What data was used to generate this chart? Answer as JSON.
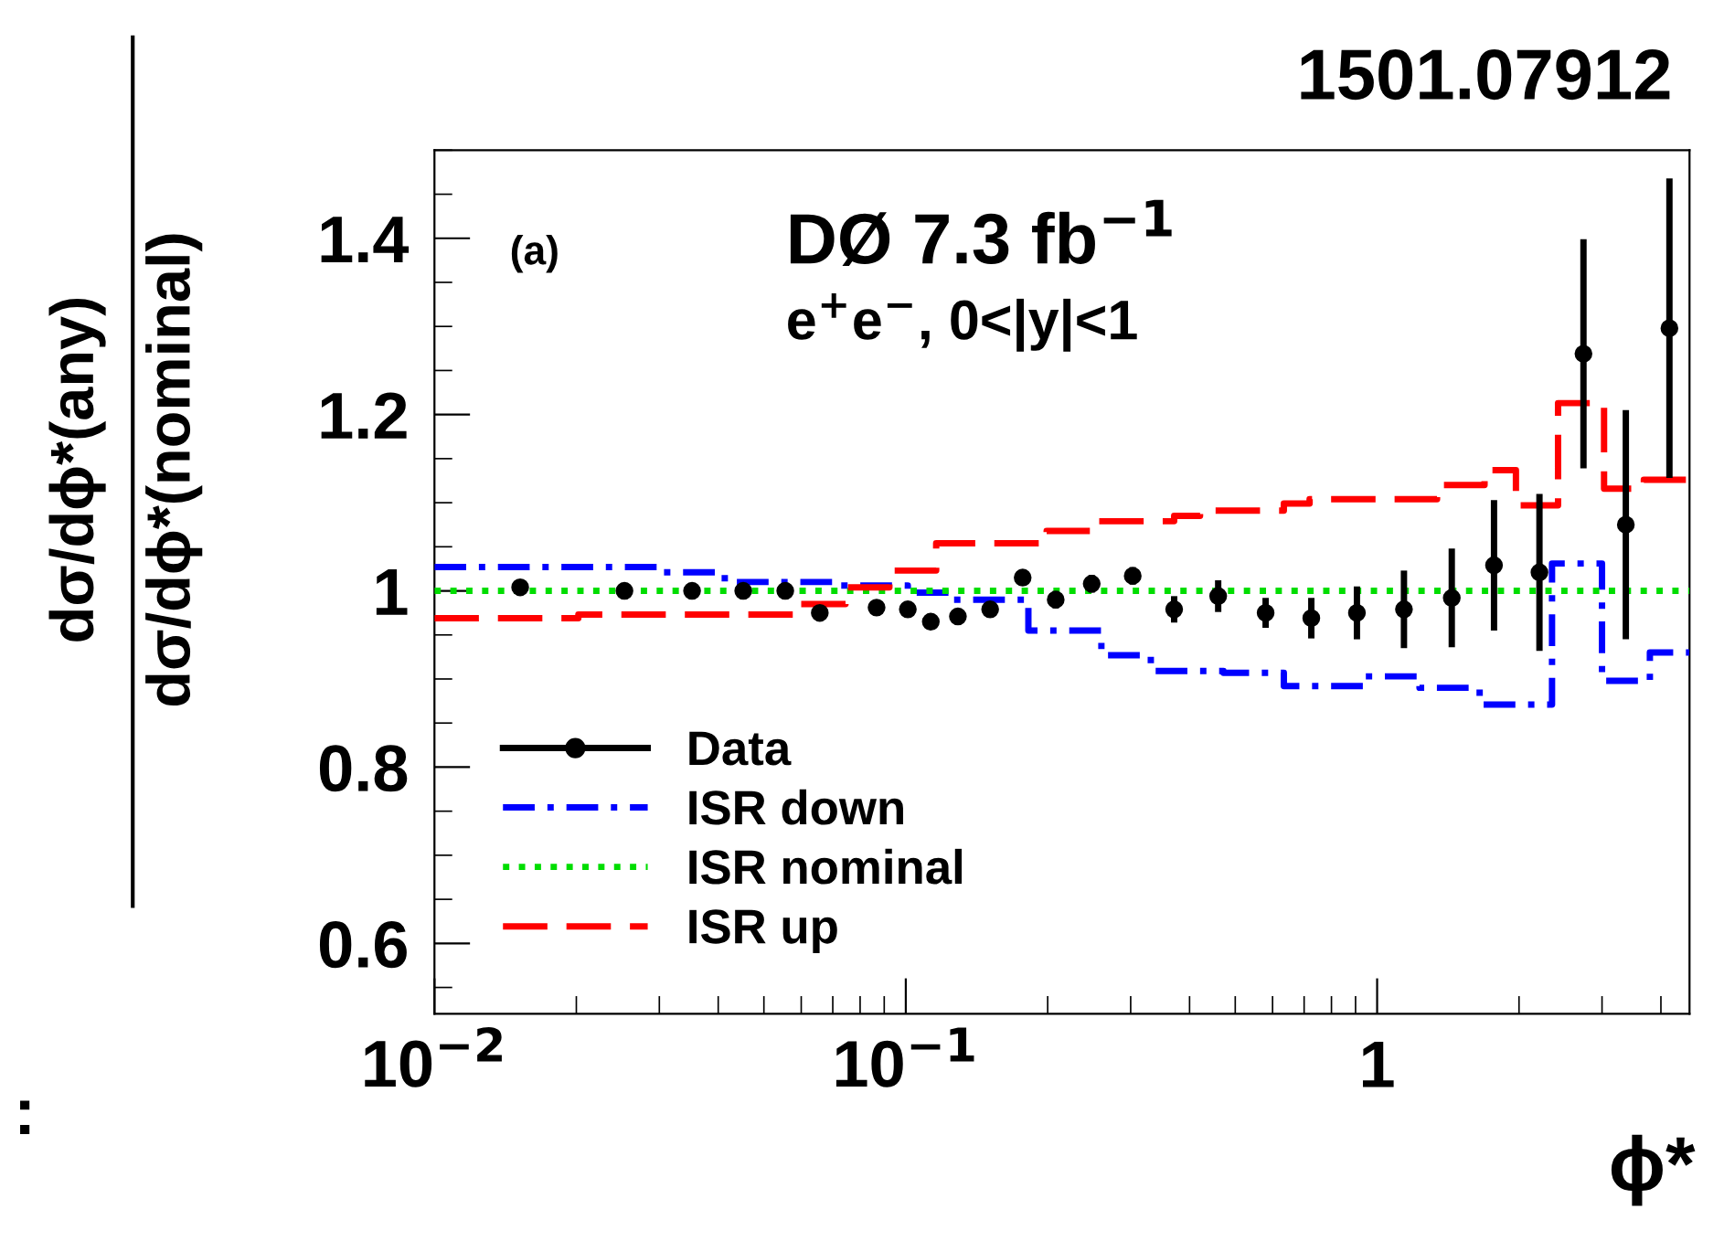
{
  "chart_data": {
    "type": "step",
    "xlabel": "ϕ*",
    "ylabel": "dσ/dϕ*(any)\ndσ/dϕ*(nominal)",
    "annotations": [
      "(a)",
      "DØ 7.3 fb$^{−1}$",
      "e$^{+}$e$^{−}$, 0<|y|<1",
      "1501.07912",
      ":"
    ],
    "log": "x",
    "xlim": [
      0.01,
      4.6
    ],
    "xticks": [
      {
        "value": 0.01,
        "label": "10$^{−2}$"
      },
      {
        "value": 0.1,
        "label": "10$^{−1}$"
      },
      1
    ],
    "ylim": [
      0.52,
      1.5
    ],
    "yticks": [
      0.6,
      0.8,
      1,
      1.2,
      1.4
    ],
    "grid": false,
    "legend": "bottom left",
    "series": [
      {
        "name": "Data",
        "type": "scatter",
        "color": "#000000",
        "marker": "circle",
        "x": [
          0.0152,
          0.0253,
          0.0352,
          0.0452,
          0.0555,
          0.0657,
          0.0867,
          0.101,
          0.113,
          0.129,
          0.151,
          0.177,
          0.208,
          0.248,
          0.303,
          0.371,
          0.46,
          0.58,
          0.725,
          0.906,
          1.14,
          1.44,
          1.77,
          2.21,
          2.74,
          3.37,
          4.17
        ],
        "values": [
          1.004,
          1.0,
          1.0,
          1.0,
          1.0,
          0.975,
          0.981,
          0.979,
          0.965,
          0.971,
          0.979,
          1.015,
          0.99,
          1.008,
          1.017,
          0.979,
          0.994,
          0.975,
          0.969,
          0.975,
          0.979,
          0.992,
          1.029,
          1.021,
          1.269,
          1.075,
          1.298
        ],
        "errors": [
          null,
          null,
          null,
          null,
          null,
          null,
          null,
          null,
          null,
          null,
          null,
          null,
          0.01,
          0.01,
          0.01,
          0.015,
          0.018,
          0.017,
          0.023,
          0.03,
          0.044,
          0.056,
          0.074,
          0.089,
          0.13,
          0.13,
          0.17
        ]
      },
      {
        "name": "ISR down",
        "color": "#0000ff",
        "line_style": "dashdot",
        "x": [
          0.01,
          0.0297,
          0.0413,
          0.0706,
          0.101,
          0.124,
          0.182,
          0.26,
          0.331,
          0.472,
          0.634,
          0.94,
          1.23,
          1.65,
          2.35,
          3.0,
          3.79,
          4.6
        ],
        "values": [
          1.027,
          1.021,
          1.01,
          1.006,
          0.998,
          0.99,
          0.955,
          0.927,
          0.909,
          0.907,
          0.892,
          0.903,
          0.89,
          0.871,
          1.031,
          0.898,
          0.93,
          0.93
        ]
      },
      {
        "name": "ISR nominal",
        "color": "#00dd00",
        "line_style": "dotted",
        "x": [
          0.01,
          4.6
        ],
        "values": [
          1.0,
          1.0
        ]
      },
      {
        "name": "ISR up",
        "color": "#ff0000",
        "line_style": "dashed",
        "x": [
          0.01,
          0.0202,
          0.059,
          0.0745,
          0.0923,
          0.116,
          0.199,
          0.253,
          0.371,
          0.421,
          0.634,
          0.719,
          1.34,
          1.69,
          1.97,
          2.42,
          3.03,
          3.68,
          4.6
        ],
        "values": [
          0.969,
          0.973,
          0.985,
          1.004,
          1.023,
          1.054,
          1.068,
          1.079,
          1.085,
          1.091,
          1.099,
          1.104,
          1.12,
          1.137,
          1.097,
          1.213,
          1.116,
          1.126,
          1.126
        ]
      }
    ]
  }
}
